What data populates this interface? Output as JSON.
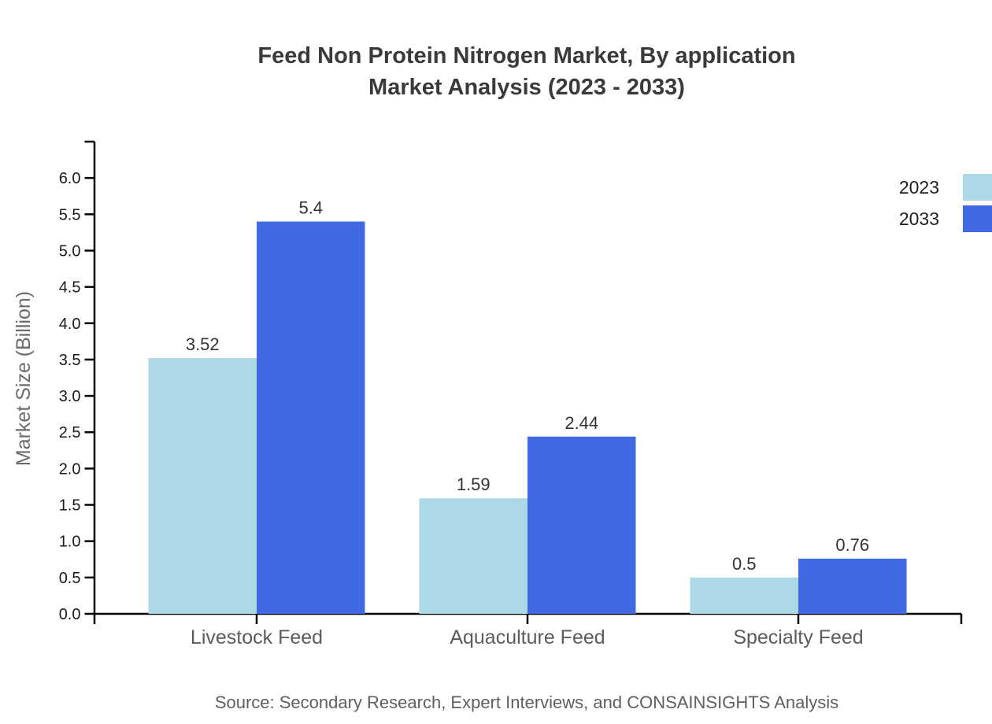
{
  "chart_data": {
    "type": "bar",
    "title": "Feed Non Protein Nitrogen Market, By application",
    "subtitle": "Market Analysis (2023 - 2033)",
    "categories": [
      "Livestock Feed",
      "Aquaculture Feed",
      "Specialty Feed"
    ],
    "series": [
      {
        "name": "2023",
        "color": "#ADD8E6",
        "values": [
          3.52,
          1.59,
          0.5
        ]
      },
      {
        "name": "2033",
        "color": "#4169E1",
        "values": [
          5.4,
          2.44,
          0.76
        ]
      }
    ],
    "ylabel": "Market Size (Billion)",
    "ylim": [
      0,
      6.5
    ],
    "yticks": [
      "0.0",
      "0.5",
      "1.0",
      "1.5",
      "2.0",
      "2.5",
      "3.0",
      "3.5",
      "4.0",
      "4.5",
      "5.0",
      "5.5",
      "6.0"
    ],
    "grid": false,
    "legend_position": "top-right",
    "axis_color": "#000000"
  },
  "footer": {
    "source": "Source: Secondary Research, Expert Interviews, and CONSAINSIGHTS Analysis"
  }
}
